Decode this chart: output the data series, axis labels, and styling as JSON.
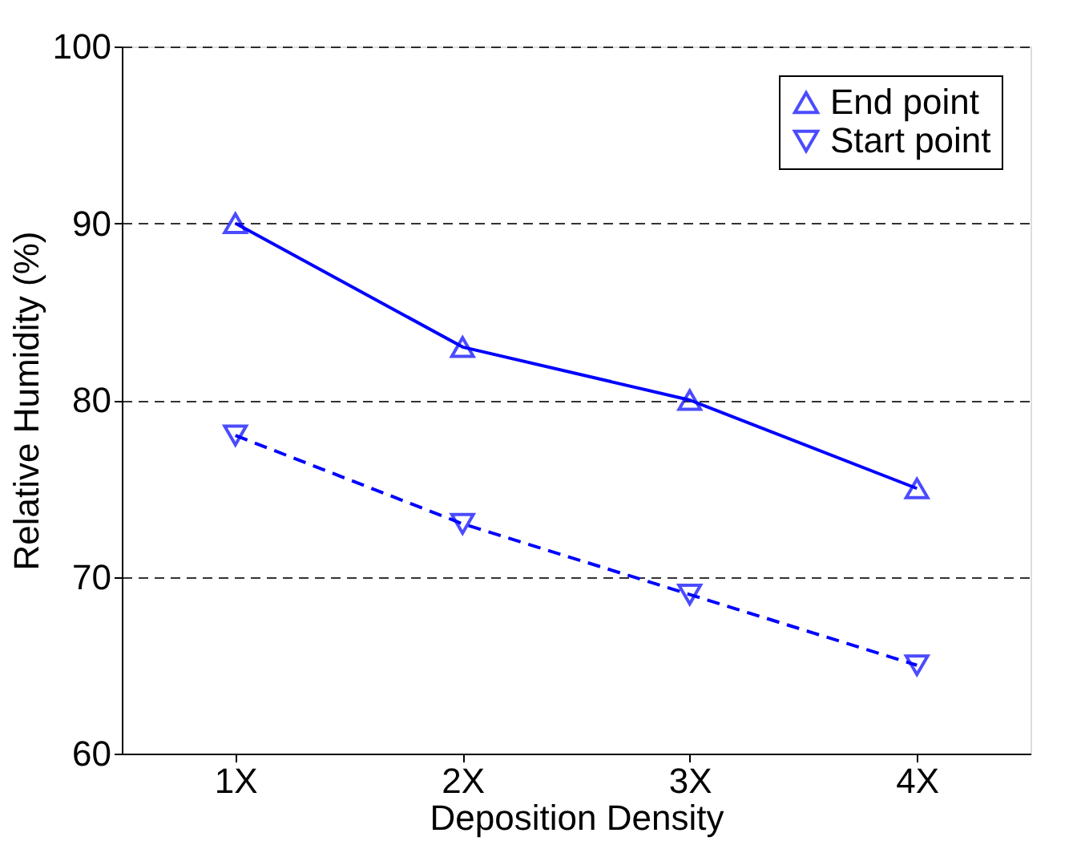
{
  "chart_data": {
    "type": "line",
    "xlabel": "Deposition Density",
    "ylabel": "Relative Humidity (%)",
    "categories": [
      "1X",
      "2X",
      "3X",
      "4X"
    ],
    "series": [
      {
        "name": "End point",
        "color": "#0000ff",
        "values": [
          90,
          83,
          80,
          75
        ],
        "marker": "triangle-up",
        "line_style": "solid"
      },
      {
        "name": "Start point",
        "color": "#0000ff",
        "values": [
          78,
          73,
          69,
          65
        ],
        "marker": "triangle-down",
        "line_style": "dashed"
      }
    ],
    "ylim": [
      60,
      100
    ],
    "yticks": [
      60,
      70,
      80,
      90,
      100
    ],
    "grid": "y",
    "legend": "top right"
  }
}
